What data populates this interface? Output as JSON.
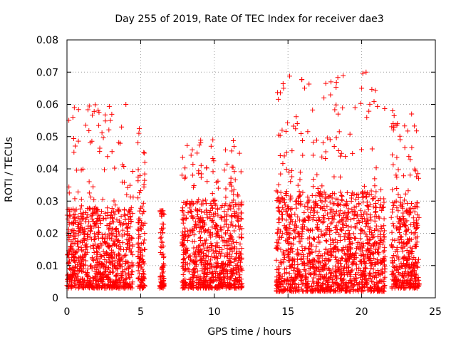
{
  "chart_data": {
    "type": "scatter",
    "title": "Day 255 of 2019, Rate Of TEC Index for receiver dae3",
    "xlabel": "GPS time / hours",
    "ylabel": "ROTI / TECUs",
    "xlim": [
      0,
      25
    ],
    "ylim": [
      0,
      0.08
    ],
    "x_ticks": [
      "0",
      "5",
      "10",
      "15",
      "20",
      "25"
    ],
    "y_ticks": [
      "0",
      "0.01",
      "0.02",
      "0.03",
      "0.04",
      "0.05",
      "0.06",
      "0.07",
      "0.08"
    ],
    "grid": true,
    "marker": "+",
    "series_color": "#ff0000",
    "segments": [
      {
        "x": [
          0.0,
          4.5
        ],
        "typical_range": [
          0.003,
          0.028
        ],
        "peak": 0.06
      },
      {
        "x": [
          4.8,
          5.3
        ],
        "typical_range": [
          0.003,
          0.04
        ],
        "peak": 0.053
      },
      {
        "x": [
          6.3,
          6.6
        ],
        "typical_range": [
          0.003,
          0.027
        ],
        "peak": 0.027
      },
      {
        "x": [
          7.8,
          11.9
        ],
        "typical_range": [
          0.003,
          0.03
        ],
        "peak": 0.049
      },
      {
        "x": [
          14.2,
          21.6
        ],
        "typical_range": [
          0.002,
          0.033
        ],
        "peak": 0.07
      },
      {
        "x": [
          22.0,
          23.9
        ],
        "typical_range": [
          0.003,
          0.03
        ],
        "peak": 0.059
      }
    ],
    "highlighted_points": [
      {
        "x": 0.5,
        "y": 0.059
      },
      {
        "x": 0.4,
        "y": 0.056
      },
      {
        "x": 4.0,
        "y": 0.06
      },
      {
        "x": 14.7,
        "y": 0.065
      },
      {
        "x": 14.6,
        "y": 0.052
      },
      {
        "x": 18.4,
        "y": 0.057
      },
      {
        "x": 20.0,
        "y": 0.065
      },
      {
        "x": 20.3,
        "y": 0.07
      },
      {
        "x": 22.1,
        "y": 0.058
      },
      {
        "x": 9.9,
        "y": 0.049
      }
    ]
  }
}
